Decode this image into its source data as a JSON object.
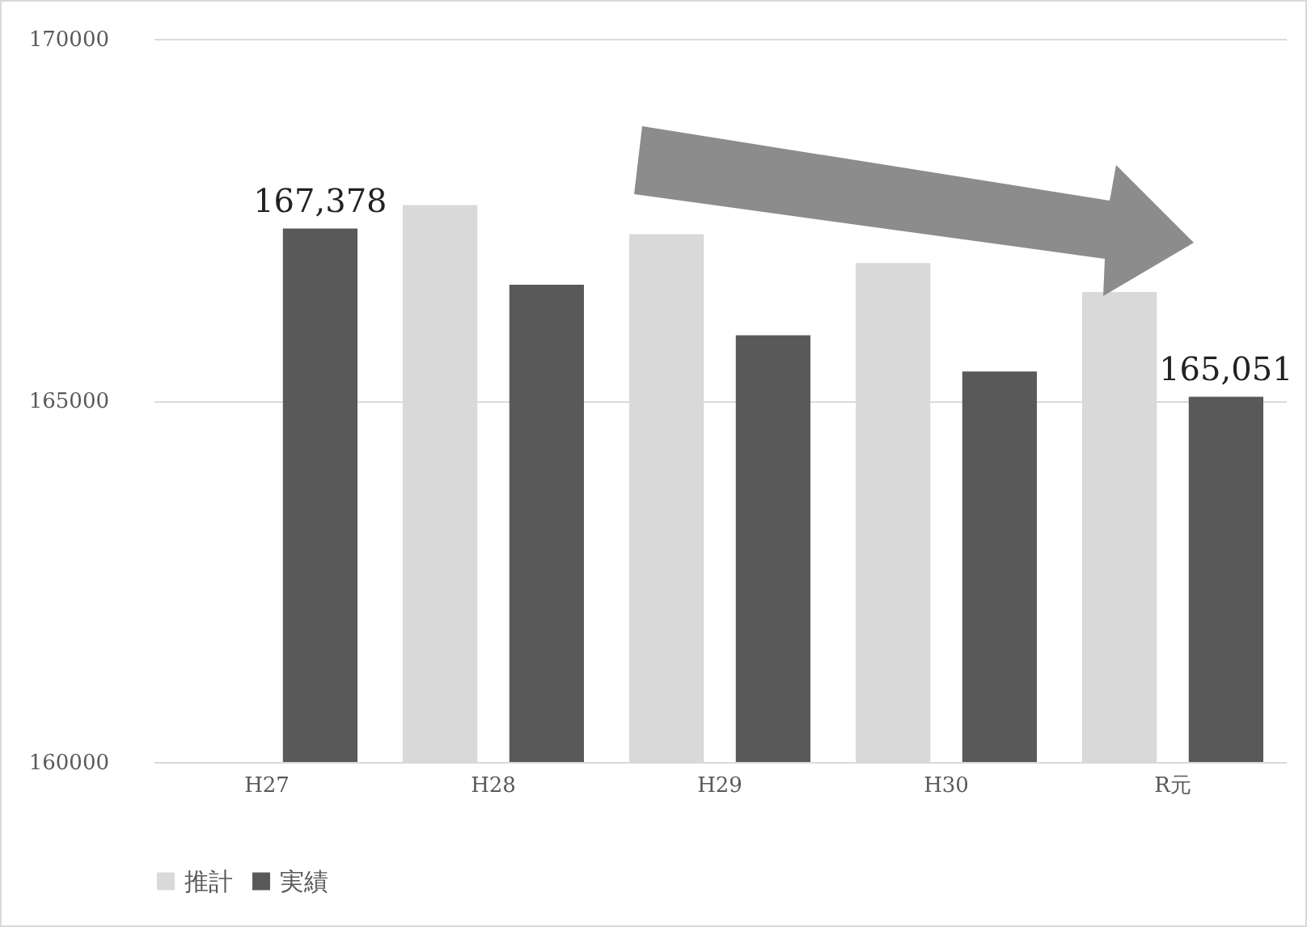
{
  "chart_data": {
    "type": "bar",
    "categories": [
      "H27",
      "H28",
      "H29",
      "H30",
      "R元"
    ],
    "series": [
      {
        "name": "推計",
        "color": "#d9d9d9",
        "values": [
          null,
          167700,
          167300,
          166900,
          166500
        ]
      },
      {
        "name": "実績",
        "color": "#595959",
        "values": [
          167378,
          166600,
          165900,
          165400,
          165051
        ],
        "value_labels": [
          "167,378",
          null,
          null,
          null,
          "165,051"
        ]
      }
    ],
    "ylim": [
      160000,
      170000
    ],
    "yticks": [
      160000,
      165000,
      170000
    ],
    "grid": "y",
    "legend": "bottom"
  }
}
